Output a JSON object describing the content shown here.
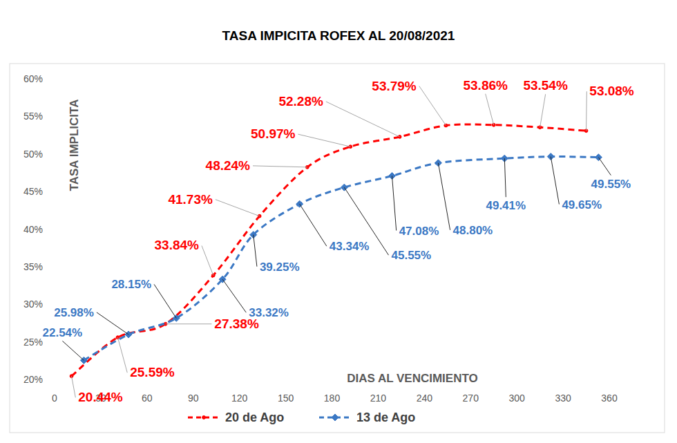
{
  "chart_data": {
    "type": "line",
    "title": "TASA IMPICITA ROFEX AL 20/08/2021",
    "x_label": "DIAS AL VENCIMIENTO",
    "y_label": "TASA IMPLICITA",
    "xlim": [
      0,
      360
    ],
    "xticks": [
      0,
      30,
      60,
      90,
      120,
      150,
      180,
      210,
      240,
      270,
      300,
      330,
      360
    ],
    "ylim": [
      20,
      60
    ],
    "yticks": [
      {
        "value": 20,
        "label": "20%"
      },
      {
        "value": 25,
        "label": "25%"
      },
      {
        "value": 30,
        "label": "30%"
      },
      {
        "value": 35,
        "label": "35%"
      },
      {
        "value": 40,
        "label": "40%"
      },
      {
        "value": 45,
        "label": "45%"
      },
      {
        "value": 50,
        "label": "50%"
      },
      {
        "value": 55,
        "label": "55%"
      },
      {
        "value": 60,
        "label": "60%"
      }
    ],
    "grid": false,
    "legend": "bottom",
    "data_labels": true,
    "series": [
      {
        "name": "20 de Ago",
        "color": "#ff0000",
        "line_style": "dashed",
        "marker": "circle",
        "x": [
          11,
          41,
          72,
          103,
          133,
          164,
          192,
          224,
          254,
          285,
          315,
          345
        ],
        "values": [
          20.44,
          25.59,
          27.38,
          33.84,
          41.73,
          48.24,
          50.97,
          52.28,
          53.79,
          53.86,
          53.54,
          53.08
        ],
        "value_labels": [
          "20.44%",
          "25.59%",
          "27.38%",
          "33.84%",
          "41.73%",
          "48.24%",
          "50.97%",
          "52.28%",
          "53.79%",
          "53.86%",
          "53.54%",
          "53.08%"
        ]
      },
      {
        "name": "13 de Ago",
        "color": "#3b78c4",
        "line_style": "dashed",
        "marker": "diamond",
        "x": [
          19,
          48,
          79,
          109,
          129,
          159,
          188,
          219,
          249,
          292,
          322,
          353
        ],
        "values": [
          22.54,
          25.98,
          28.15,
          33.32,
          39.25,
          43.34,
          45.55,
          47.08,
          48.8,
          49.41,
          49.65,
          49.55
        ],
        "value_labels": [
          "22.54%",
          "25.98%",
          "28.15%",
          "33.32%",
          "39.25%",
          "43.34%",
          "45.55%",
          "47.08%",
          "48.80%",
          "49.41%",
          "49.65%",
          "49.55%"
        ]
      }
    ]
  }
}
